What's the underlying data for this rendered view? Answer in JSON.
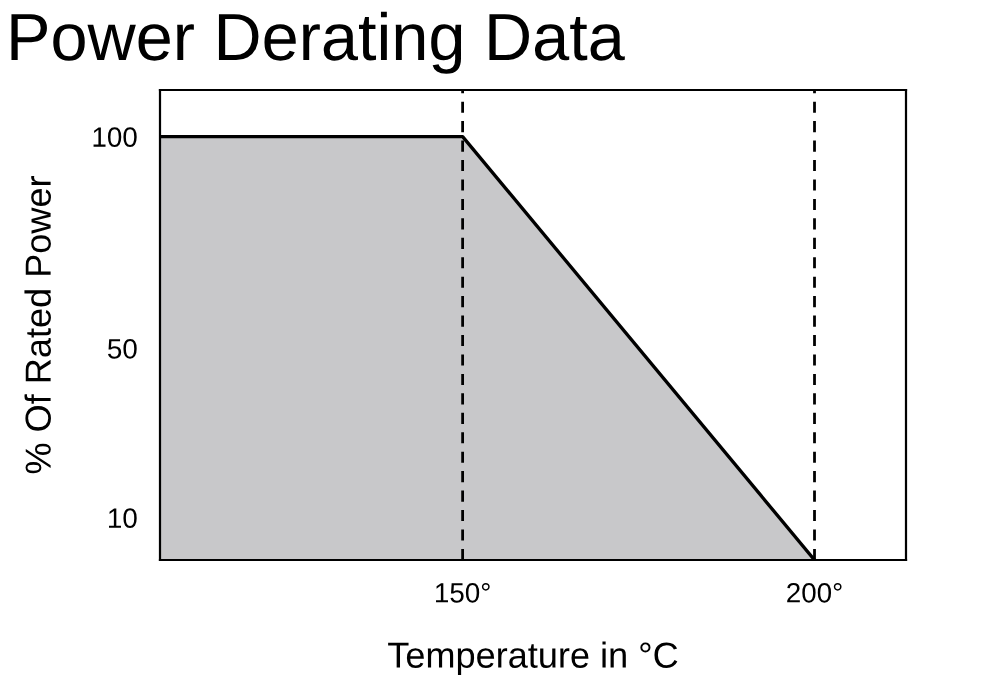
{
  "chart_data": {
    "type": "area",
    "title": "Power Derating Data",
    "xlabel": "Temperature in °C",
    "ylabel": "% Of Rated Power",
    "series": [
      {
        "x": [
          107,
          150,
          200
        ],
        "values": [
          100,
          100,
          0
        ],
        "color": "#c8c8ca"
      }
    ],
    "xlim": [
      107,
      213
    ],
    "ylim": [
      0,
      111
    ],
    "xticks": [
      {
        "value": 150,
        "label": "150°"
      },
      {
        "value": 200,
        "label": "200°"
      }
    ],
    "yticks": [
      10,
      50,
      100
    ],
    "ref_lines": [
      {
        "axis": "x",
        "value": 150,
        "color": "#000000",
        "line_style": "dashed"
      },
      {
        "axis": "x",
        "value": 200,
        "color": "#000000",
        "line_style": "dashed"
      }
    ],
    "grid": false,
    "legend": false
  }
}
